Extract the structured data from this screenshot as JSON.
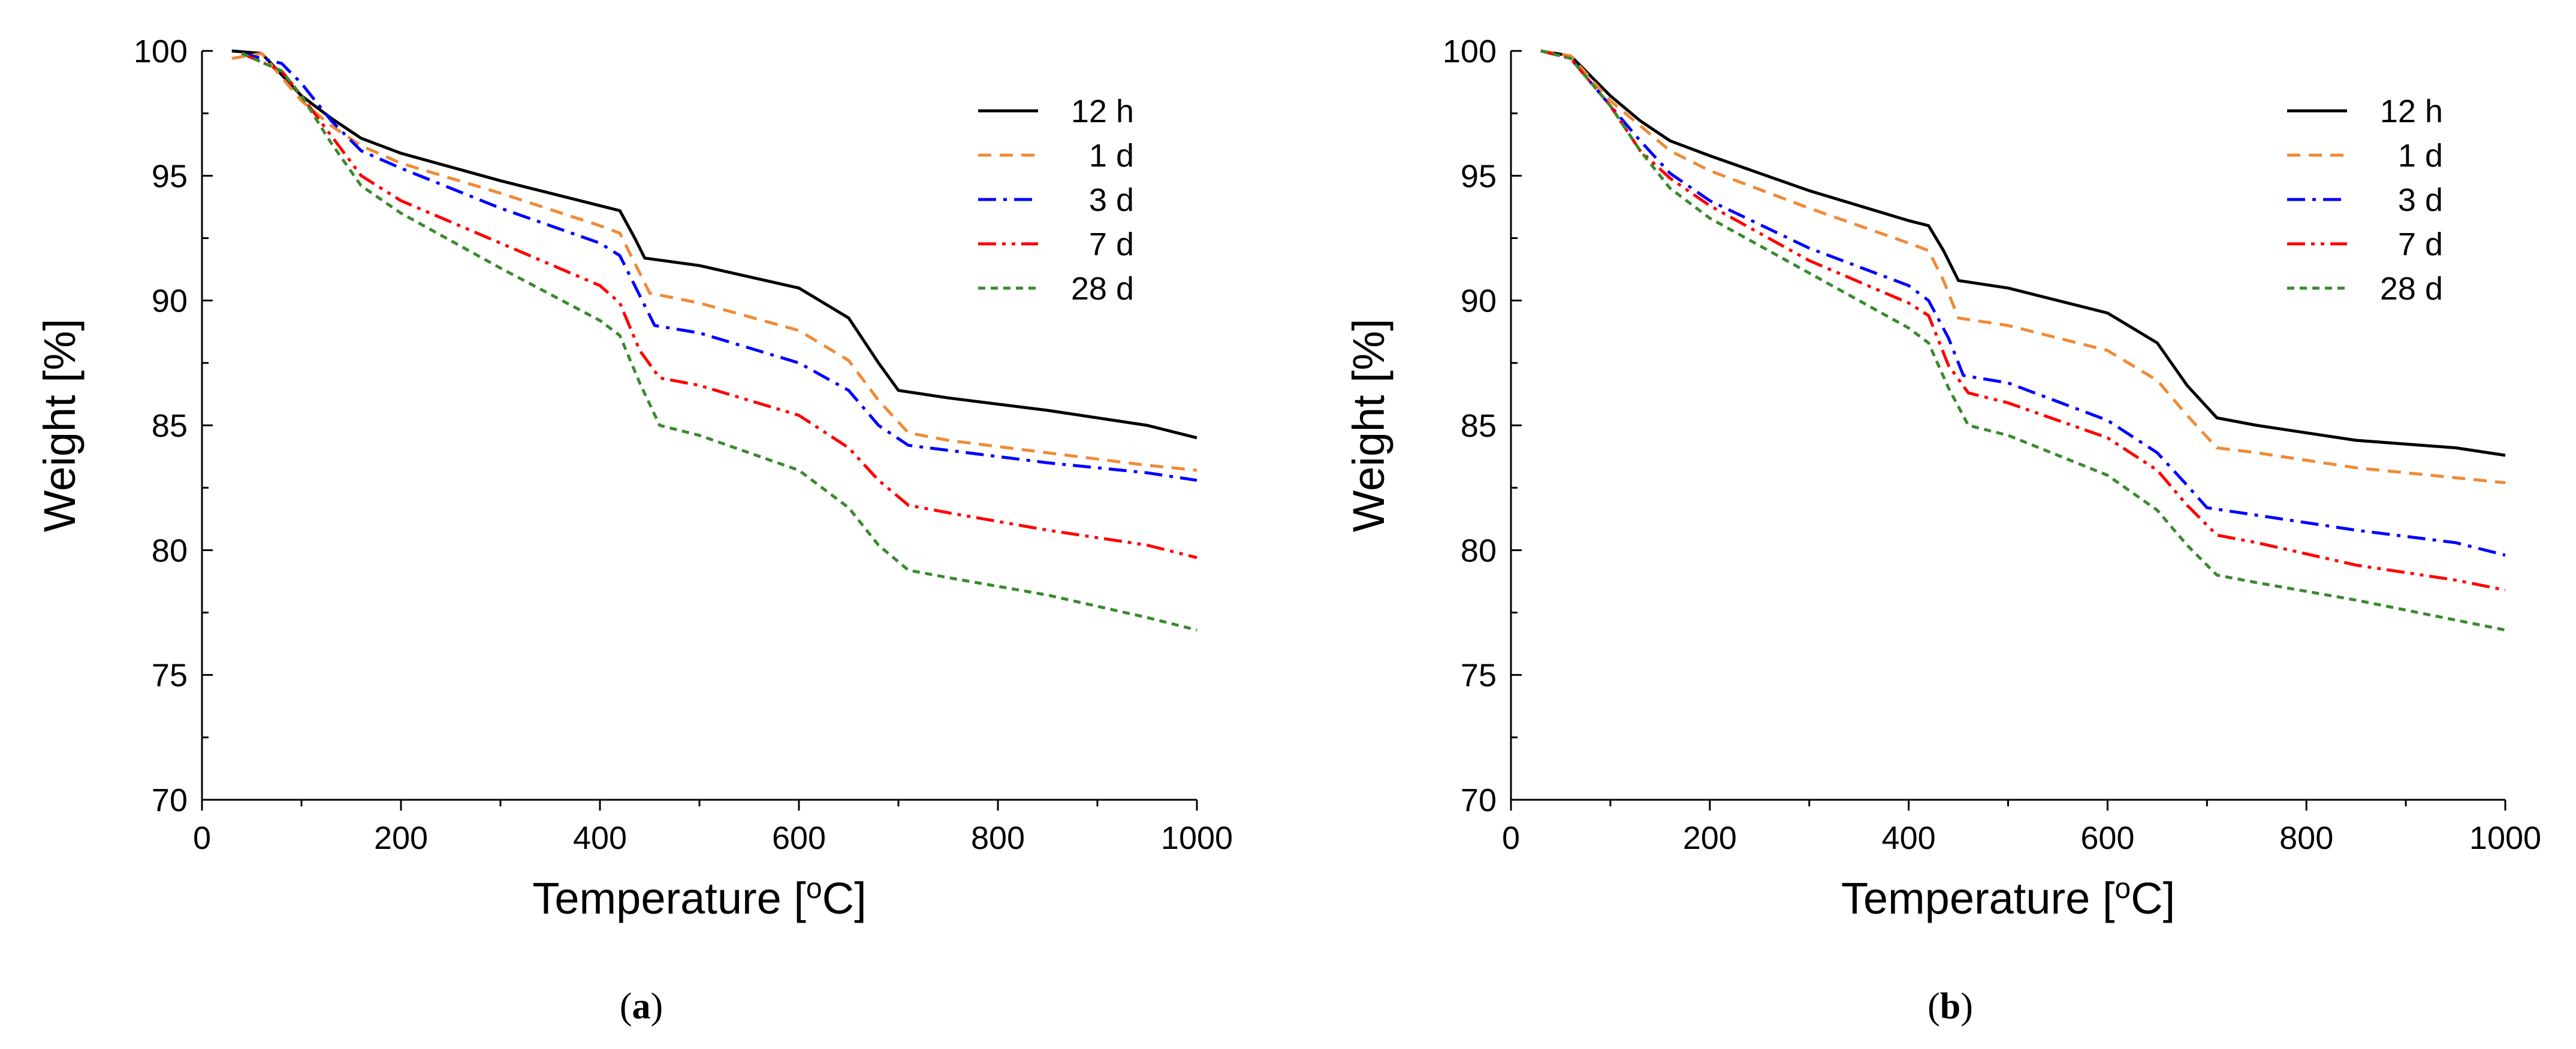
{
  "chart_data": [
    {
      "type": "line",
      "panel_label": "a",
      "xlabel": "Temperature [",
      "xlabel_sup": "o",
      "xlabel_end": "C]",
      "ylabel": "Weight [%]",
      "xlim": [
        0,
        1000
      ],
      "ylim": [
        70,
        100
      ],
      "xticks": [
        0,
        200,
        400,
        600,
        800,
        1000
      ],
      "yticks": [
        70,
        75,
        80,
        85,
        90,
        95,
        100
      ],
      "legend_position": "top-right",
      "series": [
        {
          "name": "12 h",
          "color": "#000000",
          "dash": "solid",
          "points": [
            [
              30,
              100
            ],
            [
              60,
              99.9
            ],
            [
              100,
              98.2
            ],
            [
              130,
              97.3
            ],
            [
              160,
              96.5
            ],
            [
              200,
              95.9
            ],
            [
              300,
              94.8
            ],
            [
              400,
              93.8
            ],
            [
              420,
              93.6
            ],
            [
              435,
              92.5
            ],
            [
              445,
              91.7
            ],
            [
              500,
              91.4
            ],
            [
              600,
              90.5
            ],
            [
              650,
              89.3
            ],
            [
              680,
              87.5
            ],
            [
              700,
              86.4
            ],
            [
              750,
              86.1
            ],
            [
              850,
              85.6
            ],
            [
              950,
              85.0
            ],
            [
              1000,
              84.5
            ]
          ]
        },
        {
          "name": "1 d",
          "color": "#F08A35",
          "dash": "dash",
          "points": [
            [
              30,
              99.7
            ],
            [
              60,
              99.9
            ],
            [
              100,
              98.0
            ],
            [
              130,
              97.0
            ],
            [
              160,
              96.2
            ],
            [
              200,
              95.5
            ],
            [
              300,
              94.3
            ],
            [
              400,
              93.0
            ],
            [
              420,
              92.7
            ],
            [
              435,
              91.5
            ],
            [
              450,
              90.3
            ],
            [
              500,
              89.9
            ],
            [
              600,
              88.8
            ],
            [
              650,
              87.6
            ],
            [
              680,
              86.0
            ],
            [
              710,
              84.7
            ],
            [
              750,
              84.4
            ],
            [
              850,
              83.9
            ],
            [
              950,
              83.4
            ],
            [
              1000,
              83.2
            ]
          ]
        },
        {
          "name": "3 d",
          "color": "#0000FF",
          "dash": "dashdot",
          "points": [
            [
              40,
              99.9
            ],
            [
              80,
              99.5
            ],
            [
              100,
              98.7
            ],
            [
              130,
              97.2
            ],
            [
              160,
              96.0
            ],
            [
              200,
              95.3
            ],
            [
              300,
              93.7
            ],
            [
              400,
              92.3
            ],
            [
              420,
              91.8
            ],
            [
              435,
              90.6
            ],
            [
              455,
              89.0
            ],
            [
              500,
              88.7
            ],
            [
              600,
              87.5
            ],
            [
              650,
              86.4
            ],
            [
              680,
              85.0
            ],
            [
              710,
              84.2
            ],
            [
              750,
              84.0
            ],
            [
              850,
              83.5
            ],
            [
              950,
              83.1
            ],
            [
              1000,
              82.8
            ]
          ]
        },
        {
          "name": "7 d",
          "color": "#FF0000",
          "dash": "dashdotdot",
          "points": [
            [
              40,
              99.9
            ],
            [
              80,
              99.2
            ],
            [
              100,
              98.2
            ],
            [
              130,
              96.6
            ],
            [
              160,
              95.0
            ],
            [
              200,
              94.0
            ],
            [
              300,
              92.3
            ],
            [
              400,
              90.6
            ],
            [
              420,
              89.9
            ],
            [
              440,
              88.0
            ],
            [
              460,
              86.9
            ],
            [
              500,
              86.6
            ],
            [
              600,
              85.4
            ],
            [
              650,
              84.1
            ],
            [
              680,
              82.8
            ],
            [
              710,
              81.8
            ],
            [
              750,
              81.5
            ],
            [
              850,
              80.8
            ],
            [
              950,
              80.2
            ],
            [
              1000,
              79.7
            ]
          ]
        },
        {
          "name": "28 d",
          "color": "#3A8A2E",
          "dash": "dot",
          "points": [
            [
              40,
              99.9
            ],
            [
              80,
              99.2
            ],
            [
              100,
              98.2
            ],
            [
              130,
              96.3
            ],
            [
              160,
              94.6
            ],
            [
              200,
              93.5
            ],
            [
              300,
              91.3
            ],
            [
              400,
              89.2
            ],
            [
              420,
              88.6
            ],
            [
              440,
              86.7
            ],
            [
              460,
              85.0
            ],
            [
              500,
              84.6
            ],
            [
              600,
              83.2
            ],
            [
              650,
              81.7
            ],
            [
              680,
              80.2
            ],
            [
              710,
              79.2
            ],
            [
              750,
              78.9
            ],
            [
              850,
              78.2
            ],
            [
              950,
              77.3
            ],
            [
              1000,
              76.8
            ]
          ]
        }
      ]
    },
    {
      "type": "line",
      "panel_label": "b",
      "xlabel": "Temperature [",
      "xlabel_sup": "o",
      "xlabel_end": "C]",
      "ylabel": "Weight [%]",
      "xlim": [
        0,
        1000
      ],
      "ylim": [
        70,
        100
      ],
      "xticks": [
        0,
        200,
        400,
        600,
        800,
        1000
      ],
      "yticks": [
        70,
        75,
        80,
        85,
        90,
        95,
        100
      ],
      "legend_position": "top-right",
      "series": [
        {
          "name": "12 h",
          "color": "#000000",
          "dash": "solid",
          "points": [
            [
              30,
              100
            ],
            [
              60,
              99.8
            ],
            [
              100,
              98.2
            ],
            [
              130,
              97.2
            ],
            [
              160,
              96.4
            ],
            [
              200,
              95.8
            ],
            [
              300,
              94.4
            ],
            [
              400,
              93.2
            ],
            [
              420,
              93.0
            ],
            [
              435,
              92.0
            ],
            [
              450,
              90.8
            ],
            [
              500,
              90.5
            ],
            [
              600,
              89.5
            ],
            [
              650,
              88.3
            ],
            [
              680,
              86.6
            ],
            [
              710,
              85.3
            ],
            [
              750,
              85.0
            ],
            [
              850,
              84.4
            ],
            [
              950,
              84.1
            ],
            [
              1000,
              83.8
            ]
          ]
        },
        {
          "name": "1 d",
          "color": "#F08A35",
          "dash": "dash",
          "points": [
            [
              30,
              100
            ],
            [
              60,
              99.8
            ],
            [
              100,
              98.0
            ],
            [
              130,
              97.0
            ],
            [
              160,
              96.0
            ],
            [
              200,
              95.2
            ],
            [
              300,
              93.7
            ],
            [
              400,
              92.3
            ],
            [
              420,
              92.0
            ],
            [
              435,
              90.8
            ],
            [
              450,
              89.3
            ],
            [
              500,
              89.0
            ],
            [
              600,
              88.0
            ],
            [
              650,
              86.8
            ],
            [
              680,
              85.4
            ],
            [
              710,
              84.1
            ],
            [
              750,
              83.9
            ],
            [
              850,
              83.3
            ],
            [
              950,
              82.9
            ],
            [
              1000,
              82.7
            ]
          ]
        },
        {
          "name": "3 d",
          "color": "#0000FF",
          "dash": "dashdot",
          "points": [
            [
              30,
              100
            ],
            [
              60,
              99.7
            ],
            [
              100,
              97.8
            ],
            [
              130,
              96.4
            ],
            [
              160,
              95.1
            ],
            [
              200,
              94.0
            ],
            [
              300,
              92.1
            ],
            [
              400,
              90.6
            ],
            [
              420,
              90.0
            ],
            [
              440,
              88.5
            ],
            [
              455,
              87.0
            ],
            [
              500,
              86.7
            ],
            [
              600,
              85.2
            ],
            [
              650,
              83.9
            ],
            [
              680,
              82.6
            ],
            [
              700,
              81.7
            ],
            [
              750,
              81.4
            ],
            [
              850,
              80.8
            ],
            [
              950,
              80.3
            ],
            [
              1000,
              79.8
            ]
          ]
        },
        {
          "name": "7 d",
          "color": "#FF0000",
          "dash": "dashdotdot",
          "points": [
            [
              30,
              100
            ],
            [
              60,
              99.7
            ],
            [
              100,
              97.8
            ],
            [
              130,
              96.0
            ],
            [
              160,
              94.9
            ],
            [
              200,
              93.8
            ],
            [
              300,
              91.6
            ],
            [
              400,
              89.9
            ],
            [
              420,
              89.4
            ],
            [
              440,
              87.4
            ],
            [
              460,
              86.3
            ],
            [
              500,
              85.9
            ],
            [
              600,
              84.5
            ],
            [
              650,
              83.2
            ],
            [
              680,
              81.8
            ],
            [
              710,
              80.6
            ],
            [
              750,
              80.3
            ],
            [
              850,
              79.4
            ],
            [
              950,
              78.8
            ],
            [
              1000,
              78.4
            ]
          ]
        },
        {
          "name": "28 d",
          "color": "#3A8A2E",
          "dash": "dot",
          "points": [
            [
              30,
              100
            ],
            [
              60,
              99.7
            ],
            [
              100,
              97.8
            ],
            [
              130,
              96.0
            ],
            [
              160,
              94.5
            ],
            [
              200,
              93.3
            ],
            [
              300,
              91.1
            ],
            [
              400,
              88.9
            ],
            [
              420,
              88.3
            ],
            [
              440,
              86.5
            ],
            [
              460,
              85.0
            ],
            [
              500,
              84.6
            ],
            [
              600,
              83.0
            ],
            [
              650,
              81.6
            ],
            [
              680,
              80.2
            ],
            [
              710,
              79.0
            ],
            [
              750,
              78.7
            ],
            [
              850,
              78.0
            ],
            [
              950,
              77.2
            ],
            [
              1000,
              76.8
            ]
          ]
        }
      ]
    }
  ]
}
